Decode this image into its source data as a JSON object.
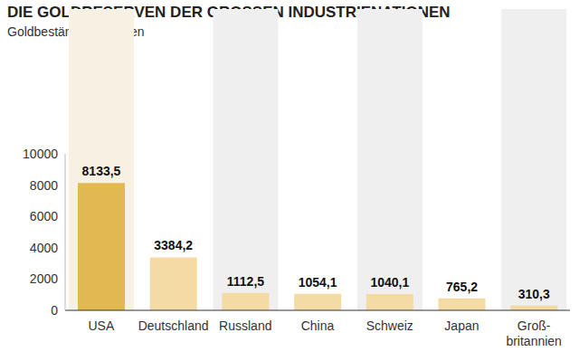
{
  "chart_data": {
    "type": "bar",
    "title": "DIE GOLDRESERVEN DER GROSSEN INDUSTRIENATIONEN",
    "subtitle": "Goldbestände in Tonnen",
    "categories": [
      "USA",
      "Deutschland",
      "Russland",
      "China",
      "Schweiz",
      "Japan",
      "Groß-britannien"
    ],
    "values": [
      8133.5,
      3384.2,
      1112.5,
      1054.1,
      1040.1,
      765.2,
      310.3
    ],
    "value_labels": [
      "8133,5",
      "3384,2",
      "1112,5",
      "1054,1",
      "1040,1",
      "765,2",
      "310,3"
    ],
    "colors": [
      "#e2b851",
      "#f4dba3",
      "#f4dba3",
      "#f4dba3",
      "#f4dba3",
      "#f4dba3",
      "#f4dba3"
    ],
    "ylim": [
      0,
      10000
    ],
    "yticks": [
      0,
      2000,
      4000,
      6000,
      8000,
      10000
    ],
    "grid": false,
    "data_labels": true
  }
}
